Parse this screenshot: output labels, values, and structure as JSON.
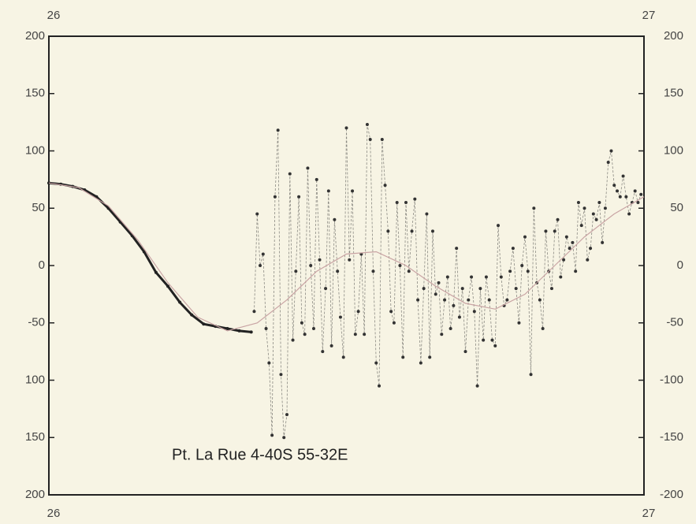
{
  "chart_data": {
    "type": "line",
    "annotation": "Pt. La Rue   4-40S  55-32E",
    "xlim": [
      26,
      27
    ],
    "xticks": [
      26,
      27
    ],
    "ylim": [
      -200,
      200
    ],
    "yticks": [
      200,
      150,
      100,
      50,
      0,
      -50,
      {
        "value": -100,
        "label": "100"
      },
      {
        "value": -150,
        "label": "150"
      },
      {
        "value": -200,
        "label": "200"
      }
    ],
    "y2lim": [
      -200,
      200
    ],
    "y2ticks": [
      200,
      150,
      100,
      50,
      0,
      -50,
      -100,
      -150,
      -200
    ],
    "background": "#f7f4e4",
    "series": [
      {
        "color": "#222222",
        "width": 3,
        "markers": true,
        "dashed": false,
        "x": [
          26.0,
          26.02,
          26.04,
          26.06,
          26.08,
          26.1,
          26.12,
          26.14,
          26.16,
          26.18,
          26.2,
          26.22,
          26.24,
          26.26,
          26.28,
          26.3,
          26.32,
          26.34
        ],
        "values": [
          72,
          71,
          69,
          66,
          60,
          50,
          38,
          26,
          12,
          -6,
          -18,
          -32,
          -43,
          -51,
          -53,
          -55,
          -57,
          -58
        ]
      },
      {
        "color": "#333333",
        "width": 0.8,
        "markers": true,
        "dashed": true,
        "x": [
          26.345,
          26.35,
          26.355,
          26.36,
          26.365,
          26.37,
          26.375,
          26.38,
          26.385,
          26.39,
          26.395,
          26.4,
          26.405,
          26.41,
          26.415,
          26.42,
          26.425,
          26.43,
          26.435,
          26.44,
          26.445,
          26.45,
          26.455,
          26.46,
          26.465,
          26.47,
          26.475,
          26.48,
          26.485,
          26.49,
          26.495,
          26.5,
          26.505,
          26.51,
          26.515,
          26.52,
          26.525,
          26.53,
          26.535,
          26.54,
          26.545,
          26.55,
          26.555,
          26.56,
          26.565,
          26.57,
          26.575,
          26.58,
          26.585,
          26.59,
          26.595,
          26.6,
          26.605,
          26.61,
          26.615,
          26.62,
          26.625,
          26.63,
          26.635,
          26.64,
          26.645,
          26.65,
          26.655,
          26.66,
          26.665,
          26.67,
          26.675,
          26.68,
          26.685,
          26.69,
          26.695,
          26.7,
          26.705,
          26.71,
          26.715,
          26.72,
          26.725,
          26.73,
          26.735,
          26.74,
          26.745,
          26.75,
          26.755,
          26.76,
          26.765,
          26.77,
          26.775,
          26.78,
          26.785,
          26.79,
          26.795,
          26.8,
          26.805,
          26.81,
          26.815,
          26.82,
          26.825,
          26.83,
          26.835,
          26.84,
          26.845,
          26.85,
          26.855,
          26.86,
          26.865,
          26.87,
          26.875,
          26.88,
          26.885,
          26.89,
          26.895,
          26.9,
          26.905,
          26.91,
          26.915,
          26.92,
          26.925,
          26.93,
          26.935,
          26.94,
          26.945,
          26.95,
          26.955,
          26.96,
          26.965,
          26.97,
          26.975,
          26.98,
          26.985,
          26.99,
          26.995
        ],
        "values": [
          -40,
          45,
          0,
          10,
          -55,
          -85,
          -148,
          60,
          118,
          -95,
          -150,
          -130,
          80,
          -65,
          -5,
          60,
          -50,
          -60,
          85,
          0,
          -55,
          75,
          5,
          -75,
          -20,
          65,
          -70,
          40,
          -5,
          -45,
          -80,
          120,
          5,
          65,
          -60,
          -40,
          10,
          -60,
          123,
          110,
          -5,
          -85,
          -105,
          110,
          70,
          30,
          -40,
          -50,
          55,
          0,
          -80,
          55,
          -5,
          30,
          58,
          -30,
          -85,
          -20,
          45,
          -80,
          30,
          -25,
          -15,
          -60,
          -30,
          -10,
          -55,
          -35,
          15,
          -45,
          -20,
          -75,
          -30,
          -10,
          -40,
          -105,
          -20,
          -65,
          -10,
          -30,
          -65,
          -70,
          35,
          -10,
          -35,
          -30,
          -5,
          15,
          -20,
          -50,
          0,
          25,
          -5,
          -95,
          50,
          -15,
          -30,
          -55,
          30,
          -5,
          -20,
          30,
          40,
          -10,
          5,
          25,
          15,
          20,
          -5,
          55,
          35,
          50,
          5,
          15,
          45,
          40,
          55,
          20,
          50,
          90,
          100,
          70,
          65,
          60,
          78,
          60,
          45,
          55,
          65,
          55,
          62
        ]
      },
      {
        "color": "#c9a4a4",
        "width": 1.2,
        "markers": false,
        "dashed": false,
        "x": [
          26.0,
          26.05,
          26.1,
          26.15,
          26.2,
          26.25,
          26.3,
          26.35,
          26.4,
          26.45,
          26.5,
          26.55,
          26.6,
          26.65,
          26.7,
          26.75,
          26.8,
          26.85,
          26.9,
          26.95,
          27.0
        ],
        "values": [
          72,
          68,
          52,
          22,
          -15,
          -45,
          -57,
          -50,
          -30,
          -5,
          10,
          12,
          0,
          -18,
          -33,
          -38,
          -25,
          0,
          25,
          45,
          60
        ]
      }
    ]
  }
}
